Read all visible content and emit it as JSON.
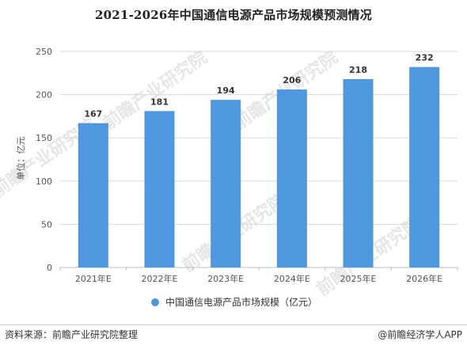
{
  "title": "2021-2026年中国通信电源产品市场规模预测情况",
  "footer": {
    "source": "资料来源：前瞻产业研究院整理",
    "credit": "@前瞻经济学人APP"
  },
  "watermark": {
    "text": "前瞻产业研究院"
  },
  "colors": {
    "bar": "#4f97de",
    "grid": "#d9d9d9",
    "axis": "#bfbfbf"
  },
  "chart_data": {
    "type": "bar",
    "categories": [
      "2021年E",
      "2022年E",
      "2023年E",
      "2024年E",
      "2025年E",
      "2026年E"
    ],
    "series": [
      {
        "name": "中国通信电源产品市场规模（亿元）",
        "values": [
          167,
          181,
          194,
          206,
          218,
          232
        ]
      }
    ],
    "ylabel": "单位：亿元",
    "ylim": [
      0,
      250
    ],
    "yticks": [
      0,
      50,
      100,
      150,
      200,
      250
    ],
    "grid": true,
    "legend_position": "bottom"
  }
}
